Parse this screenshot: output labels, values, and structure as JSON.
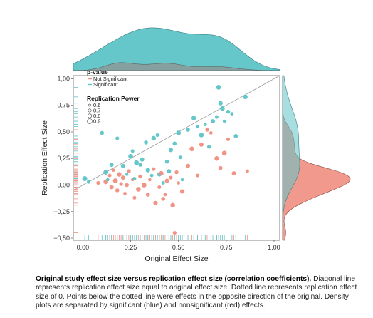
{
  "chart_data": {
    "type": "scatter",
    "title": "",
    "xlabel": "Original Effect Size",
    "ylabel": "Replication Effect Size",
    "xlim": [
      -0.05,
      1.03
    ],
    "ylim": [
      -0.52,
      1.03
    ],
    "x_ticks": [
      "0.00",
      "0.25",
      "0.50",
      "0.75",
      "1.00"
    ],
    "x_tick_values": [
      0,
      0.25,
      0.5,
      0.75,
      1.0
    ],
    "y_ticks": [
      "1,00",
      "0,75",
      "0,50",
      "0,25",
      "0,00",
      "−0,25",
      "−0,50"
    ],
    "y_tick_values": [
      1.0,
      0.75,
      0.5,
      0.25,
      0.0,
      -0.25,
      -0.5
    ],
    "grid": false,
    "legend_position": "top-left",
    "legend": {
      "pvalue_title": "p-value",
      "pvalue_items": [
        {
          "label": "Not Significant",
          "color": "#f08e80"
        },
        {
          "label": "Significant",
          "color": "#5ec4c8"
        }
      ],
      "power_title": "Replication Power",
      "power_items": [
        {
          "label": "0.6",
          "r": 1.6
        },
        {
          "label": "0.7",
          "r": 2.2
        },
        {
          "label": "0.8",
          "r": 2.8
        },
        {
          "label": "0.9",
          "r": 3.4
        }
      ]
    },
    "colors": {
      "significant": "#5ec4c8",
      "not_significant": "#f08e80",
      "overlap": "#8a9a9a",
      "diagonal": "#9a9a9a",
      "zero_line": "#888888",
      "frame": "#666666"
    },
    "series": [
      {
        "name": "Significant",
        "points": [
          {
            "x": 0.01,
            "y": 0.06,
            "r": 3.5
          },
          {
            "x": 0.03,
            "y": 0.03,
            "r": 2.6
          },
          {
            "x": 0.12,
            "y": 0.12,
            "r": 3.4
          },
          {
            "x": 0.15,
            "y": 0.19,
            "r": 3.0
          },
          {
            "x": 0.13,
            "y": 0.05,
            "r": 2.3
          },
          {
            "x": 0.1,
            "y": 0.49,
            "r": 2.8
          },
          {
            "x": 0.18,
            "y": 0.44,
            "r": 2.6
          },
          {
            "x": 0.21,
            "y": 0.18,
            "r": 3.0
          },
          {
            "x": 0.23,
            "y": 0.1,
            "r": 2.2
          },
          {
            "x": 0.25,
            "y": 0.27,
            "r": 3.3
          },
          {
            "x": 0.26,
            "y": 0.32,
            "r": 2.5
          },
          {
            "x": 0.28,
            "y": 0.21,
            "r": 3.4
          },
          {
            "x": 0.3,
            "y": 0.19,
            "r": 2.7
          },
          {
            "x": 0.31,
            "y": 0.24,
            "r": 3.0
          },
          {
            "x": 0.33,
            "y": 0.4,
            "r": 2.8
          },
          {
            "x": 0.34,
            "y": 0.14,
            "r": 3.2
          },
          {
            "x": 0.36,
            "y": 0.09,
            "r": 2.4
          },
          {
            "x": 0.37,
            "y": 0.44,
            "r": 3.3
          },
          {
            "x": 0.39,
            "y": 0.47,
            "r": 2.6
          },
          {
            "x": 0.4,
            "y": 0.1,
            "r": 3.0
          },
          {
            "x": 0.42,
            "y": 0.02,
            "r": 2.5
          },
          {
            "x": 0.44,
            "y": 0.22,
            "r": 2.8
          },
          {
            "x": 0.46,
            "y": 0.33,
            "r": 3.1
          },
          {
            "x": 0.48,
            "y": 0.39,
            "r": 2.9
          },
          {
            "x": 0.5,
            "y": 0.49,
            "r": 3.4
          },
          {
            "x": 0.51,
            "y": 0.26,
            "r": 2.5
          },
          {
            "x": 0.52,
            "y": 0.05,
            "r": 2.3
          },
          {
            "x": 0.55,
            "y": 0.52,
            "r": 2.8
          },
          {
            "x": 0.58,
            "y": 0.63,
            "r": 3.2
          },
          {
            "x": 0.6,
            "y": 0.55,
            "r": 2.6
          },
          {
            "x": 0.62,
            "y": 0.47,
            "r": 3.3
          },
          {
            "x": 0.64,
            "y": 0.57,
            "r": 2.4
          },
          {
            "x": 0.66,
            "y": 0.36,
            "r": 2.7
          },
          {
            "x": 0.68,
            "y": 0.6,
            "r": 3.0
          },
          {
            "x": 0.7,
            "y": 0.64,
            "r": 2.5
          },
          {
            "x": 0.72,
            "y": 0.77,
            "r": 3.1
          },
          {
            "x": 0.73,
            "y": 0.72,
            "r": 3.3
          },
          {
            "x": 0.74,
            "y": 0.6,
            "r": 2.2
          },
          {
            "x": 0.76,
            "y": 0.69,
            "r": 2.8
          },
          {
            "x": 0.78,
            "y": 0.67,
            "r": 2.4
          },
          {
            "x": 0.71,
            "y": 0.92,
            "r": 3.4
          },
          {
            "x": 0.8,
            "y": 0.46,
            "r": 2.9
          },
          {
            "x": 0.85,
            "y": 0.83,
            "r": 3.2
          },
          {
            "x": 0.27,
            "y": 0.06,
            "r": 2.5
          },
          {
            "x": 0.45,
            "y": 0.13,
            "r": 3.0
          }
        ]
      },
      {
        "name": "Not Significant",
        "points": [
          {
            "x": 0.08,
            "y": 0.02,
            "r": 2.6
          },
          {
            "x": 0.12,
            "y": 0.03,
            "r": 3.3
          },
          {
            "x": 0.14,
            "y": 0.09,
            "r": 2.5
          },
          {
            "x": 0.15,
            "y": -0.02,
            "r": 3.0
          },
          {
            "x": 0.16,
            "y": 0.14,
            "r": 2.3
          },
          {
            "x": 0.17,
            "y": 0.04,
            "r": 3.4
          },
          {
            "x": 0.18,
            "y": -0.05,
            "r": 2.8
          },
          {
            "x": 0.19,
            "y": 0.1,
            "r": 3.2
          },
          {
            "x": 0.2,
            "y": 0.01,
            "r": 2.6
          },
          {
            "x": 0.21,
            "y": 0.07,
            "r": 3.0
          },
          {
            "x": 0.22,
            "y": -0.08,
            "r": 2.4
          },
          {
            "x": 0.24,
            "y": 0.13,
            "r": 2.8
          },
          {
            "x": 0.27,
            "y": -0.12,
            "r": 2.5
          },
          {
            "x": 0.29,
            "y": -0.04,
            "r": 3.3
          },
          {
            "x": 0.3,
            "y": 0.08,
            "r": 2.7
          },
          {
            "x": 0.32,
            "y": 0.0,
            "r": 3.4
          },
          {
            "x": 0.34,
            "y": -0.09,
            "r": 2.9
          },
          {
            "x": 0.35,
            "y": 0.05,
            "r": 2.3
          },
          {
            "x": 0.37,
            "y": 0.15,
            "r": 2.6
          },
          {
            "x": 0.38,
            "y": -0.17,
            "r": 3.1
          },
          {
            "x": 0.4,
            "y": -0.02,
            "r": 2.5
          },
          {
            "x": 0.41,
            "y": 0.11,
            "r": 3.2
          },
          {
            "x": 0.42,
            "y": -0.13,
            "r": 2.8
          },
          {
            "x": 0.43,
            "y": -0.09,
            "r": 2.4
          },
          {
            "x": 0.44,
            "y": 0.04,
            "r": 3.0
          },
          {
            "x": 0.46,
            "y": 0.07,
            "r": 2.6
          },
          {
            "x": 0.47,
            "y": -0.19,
            "r": 3.3
          },
          {
            "x": 0.49,
            "y": 0.12,
            "r": 2.7
          },
          {
            "x": 0.5,
            "y": 0.02,
            "r": 2.3
          },
          {
            "x": 0.52,
            "y": -0.06,
            "r": 3.1
          },
          {
            "x": 0.48,
            "y": -0.45,
            "r": 2.6
          },
          {
            "x": 0.55,
            "y": 0.18,
            "r": 2.9
          },
          {
            "x": 0.57,
            "y": 0.34,
            "r": 3.3
          },
          {
            "x": 0.6,
            "y": 0.09,
            "r": 2.5
          },
          {
            "x": 0.62,
            "y": 0.38,
            "r": 3.0
          },
          {
            "x": 0.65,
            "y": 0.52,
            "r": 2.7
          },
          {
            "x": 0.67,
            "y": 0.49,
            "r": 2.4
          },
          {
            "x": 0.7,
            "y": 0.25,
            "r": 3.2
          },
          {
            "x": 0.72,
            "y": 0.16,
            "r": 2.8
          },
          {
            "x": 0.74,
            "y": 0.3,
            "r": 3.4
          },
          {
            "x": 0.76,
            "y": 0.43,
            "r": 2.6
          },
          {
            "x": 0.79,
            "y": 0.11,
            "r": 3.0
          },
          {
            "x": 0.86,
            "y": 0.13,
            "r": 2.5
          },
          {
            "x": 0.23,
            "y": 0.0,
            "r": 2.8
          },
          {
            "x": 0.26,
            "y": 0.05,
            "r": 2.3
          }
        ]
      }
    ]
  },
  "caption": {
    "title": "Original study effect size versus replication effect size (correlation coefficients).",
    "body": " Diagonal line represents replication effect size equal to original effect size. Dotted line represents replication effect size of 0. Points below the dotted line were effects in the opposite direction of the original. Density plots are separated by significant (blue) and nonsignificant (red) effects."
  }
}
